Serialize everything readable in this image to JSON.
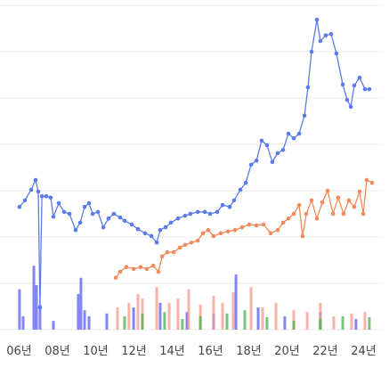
{
  "chart_data": {
    "type": "line",
    "xlim": [
      2005,
      2025
    ],
    "ylim": [
      0,
      7
    ],
    "xticks": [
      {
        "value": 2006,
        "label": "06년"
      },
      {
        "value": 2008,
        "label": "08년"
      },
      {
        "value": 2010,
        "label": "10년"
      },
      {
        "value": 2012,
        "label": "12년"
      },
      {
        "value": 2014,
        "label": "14년"
      },
      {
        "value": 2016,
        "label": "16년"
      },
      {
        "value": 2018,
        "label": "18년"
      },
      {
        "value": 2020,
        "label": "20년"
      },
      {
        "value": 2022,
        "label": "22년"
      },
      {
        "value": 2024,
        "label": "24년"
      }
    ],
    "yticks": [
      0,
      1,
      2,
      3,
      4,
      5,
      6,
      7
    ],
    "grid": true,
    "series": [
      {
        "type": "bar",
        "color": "#5a5cf0",
        "x": [
          2006.02,
          2006.21,
          2006.77,
          2006.91,
          2007.09,
          2007.79,
          2009.09,
          2009.23,
          2009.42,
          2009.65,
          2010.58,
          2011.98,
          2013.37,
          2014.77,
          2016.16,
          2017.33,
          2018.49,
          2019.88,
          2021.74,
          2023.6
        ],
        "values": [
          0.87,
          0.29,
          1.38,
          0.96,
          0.54,
          0.19,
          0.77,
          1.12,
          0.42,
          0.29,
          0.35,
          0.48,
          0.58,
          0.38,
          0.35,
          1.19,
          0.48,
          0.29,
          0.38,
          0.23
        ]
      },
      {
        "type": "bar",
        "color": "#f49a8a",
        "x": [
          2011.14,
          2011.74,
          2012.21,
          2012.44,
          2013.19,
          2013.84,
          2014.3,
          2014.86,
          2015.47,
          2016.16,
          2016.63,
          2017.19,
          2018.12,
          2018.72,
          2019.42,
          2020.35,
          2021.05,
          2021.74,
          2022.44,
          2023.37,
          2024.07
        ],
        "values": [
          0.48,
          0.58,
          0.77,
          0.67,
          0.92,
          0.58,
          0.67,
          0.87,
          0.54,
          0.73,
          0.58,
          0.81,
          0.92,
          0.48,
          0.58,
          0.42,
          0.38,
          0.58,
          0.29,
          0.35,
          0.38
        ]
      },
      {
        "type": "bar",
        "color": "#4caf50",
        "x": [
          2011.51,
          2012.44,
          2013.6,
          2014.53,
          2015.47,
          2016.86,
          2017.79,
          2018.95,
          2020.35,
          2021.74,
          2022.91,
          2024.3
        ],
        "values": [
          0.29,
          0.35,
          0.38,
          0.23,
          0.29,
          0.35,
          0.42,
          0.27,
          0.19,
          0.23,
          0.29,
          0.27
        ]
      },
      {
        "type": "line",
        "color": "#5b7be8",
        "x": [
          2006.02,
          2006.3,
          2006.63,
          2006.86,
          2007.0,
          2007.09,
          2007.19,
          2007.42,
          2007.65,
          2007.79,
          2008.07,
          2008.35,
          2008.63,
          2008.95,
          2009.19,
          2009.42,
          2009.65,
          2009.84,
          2010.12,
          2010.4,
          2010.67,
          2010.95,
          2011.28,
          2011.51,
          2011.88,
          2012.21,
          2012.58,
          2012.91,
          2013.19,
          2013.37,
          2013.65,
          2013.93,
          2014.3,
          2014.67,
          2014.95,
          2015.33,
          2015.7,
          2015.98,
          2016.35,
          2016.63,
          2017.0,
          2017.23,
          2017.56,
          2017.84,
          2018.12,
          2018.4,
          2018.67,
          2018.95,
          2019.23,
          2019.51,
          2019.79,
          2020.07,
          2020.35,
          2020.63,
          2020.91,
          2021.09,
          2021.28,
          2021.56,
          2021.74,
          2022.02,
          2022.3,
          2022.58,
          2022.91,
          2023.14,
          2023.33,
          2023.51,
          2023.79,
          2024.07,
          2024.3
        ],
        "values": [
          2.65,
          2.79,
          3.02,
          3.23,
          2.98,
          0.48,
          2.88,
          2.88,
          2.85,
          2.44,
          2.73,
          2.54,
          2.5,
          2.15,
          2.31,
          2.65,
          2.73,
          2.5,
          2.54,
          2.21,
          2.4,
          2.5,
          2.42,
          2.35,
          2.27,
          2.17,
          2.08,
          2.02,
          1.88,
          2.15,
          2.21,
          2.31,
          2.4,
          2.46,
          2.5,
          2.54,
          2.54,
          2.5,
          2.54,
          2.69,
          2.65,
          2.79,
          3.02,
          3.17,
          3.56,
          3.65,
          4.08,
          3.98,
          3.62,
          3.81,
          3.88,
          4.23,
          4.13,
          4.23,
          4.62,
          5.23,
          6.0,
          6.69,
          6.23,
          6.35,
          6.38,
          5.96,
          5.29,
          4.96,
          4.81,
          5.27,
          5.44,
          5.19,
          5.19
        ]
      },
      {
        "type": "line",
        "color": "#f28a5a",
        "x": [
          2011.05,
          2011.28,
          2011.6,
          2011.98,
          2012.35,
          2012.67,
          2013.0,
          2013.28,
          2013.47,
          2013.74,
          2014.07,
          2014.4,
          2014.67,
          2015.0,
          2015.33,
          2015.6,
          2015.88,
          2016.16,
          2016.53,
          2016.91,
          2017.28,
          2017.65,
          2018.02,
          2018.4,
          2018.77,
          2019.14,
          2019.51,
          2019.79,
          2020.07,
          2020.35,
          2020.63,
          2020.81,
          2021.0,
          2021.28,
          2021.56,
          2021.84,
          2022.12,
          2022.4,
          2022.67,
          2022.95,
          2023.23,
          2023.51,
          2023.79,
          2023.98,
          2024.16,
          2024.44
        ],
        "values": [
          1.12,
          1.25,
          1.35,
          1.31,
          1.35,
          1.31,
          1.38,
          1.25,
          1.58,
          1.67,
          1.67,
          1.77,
          1.83,
          1.88,
          1.92,
          2.08,
          2.15,
          2.02,
          2.08,
          2.12,
          2.15,
          2.21,
          2.27,
          2.25,
          2.27,
          2.08,
          2.15,
          2.31,
          2.4,
          2.5,
          2.69,
          2.02,
          2.5,
          2.79,
          2.4,
          2.75,
          3.0,
          2.5,
          2.85,
          2.5,
          2.79,
          2.65,
          2.98,
          2.5,
          3.23,
          3.17
        ]
      }
    ]
  }
}
